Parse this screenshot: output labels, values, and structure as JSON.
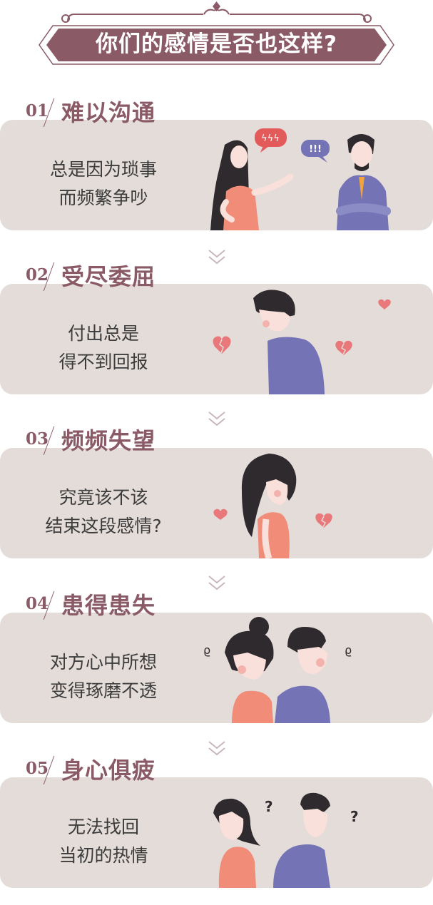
{
  "banner": {
    "title": "你们的感情是否也这样?"
  },
  "sections": [
    {
      "number": "01",
      "title": "难以沟通",
      "lines": [
        "总是因为琐事",
        "而频繁争吵"
      ]
    },
    {
      "number": "02",
      "title": "受尽委屈",
      "lines": [
        "付出总是",
        "得不到回报"
      ]
    },
    {
      "number": "03",
      "title": "频频失望",
      "lines": [
        "究竟该不该",
        "结束这段感情?"
      ]
    },
    {
      "number": "04",
      "title": "患得患失",
      "lines": [
        "对方心中所想",
        "变得琢磨不透"
      ]
    },
    {
      "number": "05",
      "title": "身心俱疲",
      "lines": [
        "无法找回",
        "当初的热情"
      ]
    }
  ],
  "bubbles": {
    "lightning": "ϟϟϟ",
    "exclaim": "!!!",
    "question": "?",
    "scribble": "ϱ"
  },
  "colors": {
    "banner": "#8a5a67",
    "accent": "#8a5a67",
    "card": "#e4dcd9",
    "text": "#3c3c3c",
    "coral": "#f08c77",
    "purple": "#7373b5",
    "hair": "#2f2a2e",
    "skin": "#f9e0da",
    "heart": "#e9787a"
  }
}
